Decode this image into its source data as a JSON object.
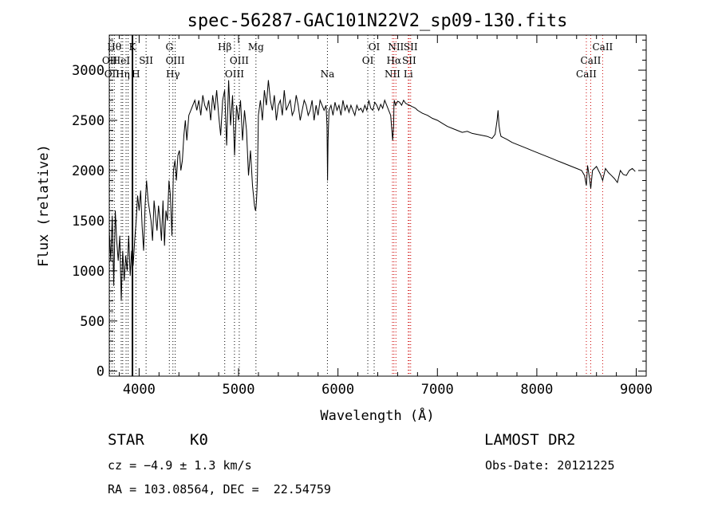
{
  "chart_data": {
    "type": "line",
    "title": "spec-56287-GAC101N22V2_sp09-130.fits",
    "xlabel": "Wavelength (Å)",
    "ylabel": "Flux (relative)",
    "xlim": [
      3700,
      9100
    ],
    "ylim": [
      -50,
      3350
    ],
    "xticks": [
      4000,
      5000,
      6000,
      7000,
      8000,
      9000
    ],
    "yticks": [
      0,
      500,
      1000,
      1500,
      2000,
      2500,
      3000
    ],
    "grid": false,
    "series": [
      {
        "x": [
          3700,
          3715,
          3730,
          3745,
          3760,
          3775,
          3790,
          3805,
          3820,
          3835,
          3850,
          3865,
          3880,
          3895,
          3910,
          3925,
          3940,
          3955,
          3970,
          3985,
          4000,
          4015,
          4030,
          4045,
          4060,
          4075,
          4090,
          4105,
          4120,
          4135,
          4150,
          4165,
          4180,
          4195,
          4210,
          4225,
          4240,
          4255,
          4270,
          4285,
          4300,
          4315,
          4330,
          4345,
          4360,
          4375,
          4390,
          4405,
          4420,
          4435,
          4450,
          4465,
          4480,
          4500,
          4520,
          4540,
          4560,
          4580,
          4600,
          4620,
          4640,
          4660,
          4680,
          4700,
          4720,
          4740,
          4760,
          4780,
          4800,
          4820,
          4840,
          4860,
          4880,
          4900,
          4920,
          4940,
          4960,
          4980,
          5000,
          5020,
          5040,
          5060,
          5080,
          5100,
          5120,
          5140,
          5160,
          5170,
          5175,
          5180,
          5185,
          5190,
          5200,
          5220,
          5240,
          5260,
          5280,
          5300,
          5320,
          5340,
          5360,
          5380,
          5400,
          5420,
          5440,
          5460,
          5480,
          5500,
          5520,
          5540,
          5560,
          5580,
          5600,
          5620,
          5640,
          5660,
          5680,
          5700,
          5720,
          5740,
          5760,
          5780,
          5800,
          5820,
          5840,
          5860,
          5880,
          5890,
          5895,
          5900,
          5910,
          5930,
          5950,
          5970,
          5990,
          6010,
          6030,
          6050,
          6070,
          6090,
          6110,
          6130,
          6150,
          6170,
          6190,
          6210,
          6230,
          6250,
          6270,
          6290,
          6310,
          6330,
          6350,
          6370,
          6390,
          6410,
          6430,
          6450,
          6470,
          6490,
          6510,
          6530,
          6550,
          6560,
          6563,
          6566,
          6580,
          6600,
          6620,
          6640,
          6660,
          6680,
          6700,
          6720,
          6740,
          6760,
          6780,
          6800,
          6850,
          6900,
          6950,
          7000,
          7050,
          7100,
          7150,
          7200,
          7250,
          7300,
          7350,
          7400,
          7450,
          7500,
          7550,
          7580,
          7600,
          7610,
          7620,
          7630,
          7640,
          7660,
          7700,
          7750,
          7800,
          7850,
          7900,
          7950,
          8000,
          8050,
          8100,
          8150,
          8200,
          8250,
          8300,
          8350,
          8400,
          8450,
          8480,
          8498,
          8510,
          8530,
          8542,
          8560,
          8600,
          8640,
          8662,
          8690,
          8720,
          8750,
          8780,
          8810,
          8840,
          8870,
          8900,
          8930,
          8960,
          8990
        ],
        "y": [
          1400,
          1100,
          1550,
          850,
          1600,
          1300,
          1100,
          1350,
          700,
          1200,
          900,
          1150,
          1000,
          1350,
          950,
          1200,
          1050,
          1300,
          1500,
          1750,
          1600,
          1800,
          1450,
          1200,
          1650,
          1900,
          1700,
          1600,
          1500,
          1300,
          1700,
          1550,
          1400,
          1650,
          1500,
          1300,
          1700,
          1250,
          1600,
          1500,
          1900,
          1750,
          1350,
          2000,
          2100,
          1900,
          2150,
          2200,
          2000,
          2100,
          2350,
          2500,
          2300,
          2550,
          2600,
          2650,
          2700,
          2600,
          2700,
          2550,
          2750,
          2650,
          2600,
          2700,
          2500,
          2750,
          2600,
          2800,
          2550,
          2350,
          2700,
          2800,
          2250,
          2900,
          2450,
          2750,
          2150,
          2650,
          2500,
          2700,
          2300,
          2600,
          2400,
          1950,
          2200,
          1850,
          1650,
          1600,
          1620,
          1700,
          1800,
          1950,
          2550,
          2700,
          2500,
          2800,
          2650,
          2900,
          2700,
          2600,
          2750,
          2500,
          2650,
          2700,
          2550,
          2800,
          2600,
          2650,
          2700,
          2550,
          2600,
          2750,
          2650,
          2500,
          2600,
          2700,
          2650,
          2550,
          2600,
          2700,
          2500,
          2650,
          2550,
          2700,
          2650,
          2600,
          2650,
          2450,
          1900,
          2300,
          2600,
          2650,
          2550,
          2680,
          2600,
          2650,
          2550,
          2700,
          2600,
          2650,
          2580,
          2650,
          2600,
          2550,
          2650,
          2600,
          2620,
          2580,
          2650,
          2600,
          2700,
          2620,
          2600,
          2680,
          2650,
          2600,
          2660,
          2620,
          2700,
          2650,
          2600,
          2550,
          2300,
          2450,
          2650,
          2700,
          2650,
          2690,
          2680,
          2650,
          2700,
          2670,
          2660,
          2650,
          2640,
          2630,
          2620,
          2600,
          2570,
          2550,
          2520,
          2500,
          2470,
          2440,
          2420,
          2400,
          2380,
          2390,
          2370,
          2360,
          2350,
          2340,
          2320,
          2360,
          2500,
          2600,
          2450,
          2380,
          2340,
          2330,
          2310,
          2280,
          2260,
          2240,
          2220,
          2200,
          2180,
          2160,
          2140,
          2120,
          2100,
          2080,
          2060,
          2040,
          2020,
          2000,
          1950,
          1850,
          2050,
          1920,
          1820,
          2000,
          2040,
          1960,
          1900,
          2020,
          1980,
          1950,
          1920,
          1880,
          2000,
          1960,
          1950,
          2000,
          2020,
          1990
        ]
      }
    ],
    "lines": [
      {
        "wl": 3704,
        "text": "OII",
        "row": 1,
        "color": "#000"
      },
      {
        "wl": 3727,
        "text": "OII",
        "row": 2,
        "color": "#000"
      },
      {
        "wl": 3750,
        "text": "Hθ",
        "row": 0,
        "color": "#000"
      },
      {
        "wl": 3820,
        "text": "HeI",
        "row": 1,
        "color": "#000"
      },
      {
        "wl": 3835,
        "text": "Hη",
        "row": 2,
        "color": "#000"
      },
      {
        "wl": 3869,
        "text": "",
        "row": 0,
        "color": "#000"
      },
      {
        "wl": 3889,
        "text": "",
        "row": 0,
        "color": "#000"
      },
      {
        "wl": 3933,
        "text": "K",
        "row": 0,
        "color": "#000"
      },
      {
        "wl": 3968,
        "text": "H",
        "row": 2,
        "color": "#000"
      },
      {
        "wl": 4070,
        "text": "SII",
        "row": 1,
        "color": "#000"
      },
      {
        "wl": 4304,
        "text": "G",
        "row": 0,
        "color": "#000"
      },
      {
        "wl": 4340,
        "text": "Hγ",
        "row": 2,
        "color": "#000"
      },
      {
        "wl": 4363,
        "text": "OIII",
        "row": 1,
        "color": "#000"
      },
      {
        "wl": 4861,
        "text": "Hβ",
        "row": 0,
        "color": "#000"
      },
      {
        "wl": 4959,
        "text": "OIII",
        "row": 2,
        "color": "#000"
      },
      {
        "wl": 5007,
        "text": "OIII",
        "row": 1,
        "color": "#000"
      },
      {
        "wl": 5175,
        "text": "Mg",
        "row": 0,
        "color": "#000"
      },
      {
        "wl": 5894,
        "text": "Na",
        "row": 2,
        "color": "#000"
      },
      {
        "wl": 6300,
        "text": "OI",
        "row": 1,
        "color": "#000"
      },
      {
        "wl": 6364,
        "text": "OI",
        "row": 0,
        "color": "#000"
      },
      {
        "wl": 6548,
        "text": "NII",
        "row": 2,
        "color": "#cc0000"
      },
      {
        "wl": 6563,
        "text": "Hα",
        "row": 1,
        "color": "#cc0000"
      },
      {
        "wl": 6583,
        "text": "NII",
        "row": 0,
        "color": "#cc0000"
      },
      {
        "wl": 6707,
        "text": "Li",
        "row": 2,
        "color": "#cc0000"
      },
      {
        "wl": 6716,
        "text": "SII",
        "row": 1,
        "color": "#cc0000"
      },
      {
        "wl": 6731,
        "text": "SII",
        "row": 0,
        "color": "#cc0000"
      },
      {
        "wl": 8498,
        "text": "CaII",
        "row": 2,
        "color": "#cc0000"
      },
      {
        "wl": 8542,
        "text": "CaII",
        "row": 1,
        "color": "#cc0000"
      },
      {
        "wl": 8662,
        "text": "CaII",
        "row": 0,
        "color": "#cc0000"
      }
    ],
    "marker_wl": 3933
  },
  "info": {
    "object_class": "STAR",
    "subclass": "K0",
    "survey": "LAMOST DR2",
    "redshift": "cz = −4.9 ± 1.3 km/s",
    "obs_date": "Obs-Date: 20121225",
    "coords": "RA = 103.08564, DEC =  22.54759"
  }
}
